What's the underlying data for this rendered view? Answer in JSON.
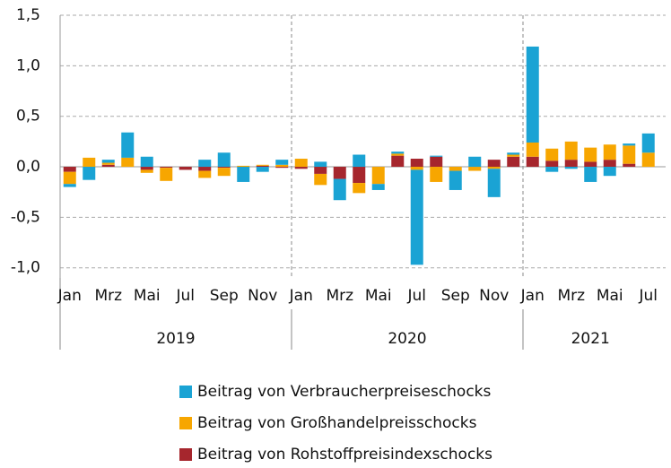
{
  "chart_data": {
    "type": "bar",
    "stacked": true,
    "categories": [
      "Jan",
      null,
      "Mrz",
      null,
      "Mai",
      null,
      "Jul",
      null,
      "Sep",
      null,
      "Nov",
      null,
      "Jan",
      null,
      "Mrz",
      null,
      "Mai",
      null,
      "Jul",
      null,
      "Sep",
      null,
      "Nov",
      null,
      "Jan",
      null,
      "Mrz",
      null,
      "Mai",
      null,
      "Jul"
    ],
    "years": [
      "2019",
      "2020",
      "2021"
    ],
    "series": [
      {
        "name": "Beitrag von Verbraucherpreiseschocks",
        "color": "#1aa3d4",
        "values": [
          -0.03,
          -0.13,
          0.03,
          0.25,
          0.1,
          0,
          0,
          0.07,
          0.14,
          -0.15,
          -0.05,
          0.05,
          0,
          0.05,
          -0.21,
          0.12,
          -0.06,
          0.02,
          -0.94,
          0.01,
          -0.19,
          0.1,
          -0.28,
          0.02,
          0.95,
          -0.05,
          -0.02,
          -0.15,
          -0.09,
          0.02,
          0.19
        ]
      },
      {
        "name": "Beitrag von Großhandelpreisschocks",
        "color": "#f7a600",
        "values": [
          -0.12,
          0.09,
          0.02,
          0.09,
          -0.03,
          -0.13,
          0,
          -0.07,
          -0.08,
          0.01,
          0.01,
          0.02,
          0.08,
          -0.11,
          0,
          -0.1,
          -0.17,
          0.02,
          -0.03,
          -0.15,
          -0.04,
          -0.04,
          -0.02,
          0.02,
          0.14,
          0.12,
          0.18,
          0.14,
          0.15,
          0.18,
          0.14
        ]
      },
      {
        "name": "Beitrag von Rohstoffpreisindexschocks",
        "color": "#a6262d",
        "values": [
          -0.05,
          0,
          0.02,
          0,
          -0.03,
          -0.01,
          -0.03,
          -0.04,
          -0.01,
          0,
          0.01,
          -0.01,
          -0.02,
          -0.07,
          -0.12,
          -0.16,
          0,
          0.11,
          0.08,
          0.1,
          0,
          0,
          0.07,
          0.1,
          0.1,
          0.06,
          0.07,
          0.05,
          0.07,
          0.03,
          0
        ]
      }
    ],
    "ylim": [
      -1.1,
      1.5
    ],
    "yticks": [
      {
        "value": 1.5,
        "label": "1,5"
      },
      {
        "value": 1,
        "label": "1,0"
      },
      {
        "value": 0.5,
        "label": "0,5"
      },
      {
        "value": 0,
        "label": "0,0"
      },
      {
        "value": -0.5,
        "label": "-0,5"
      },
      {
        "value": -1,
        "label": "-1,0"
      }
    ],
    "grid": true,
    "legend": "bottom"
  }
}
